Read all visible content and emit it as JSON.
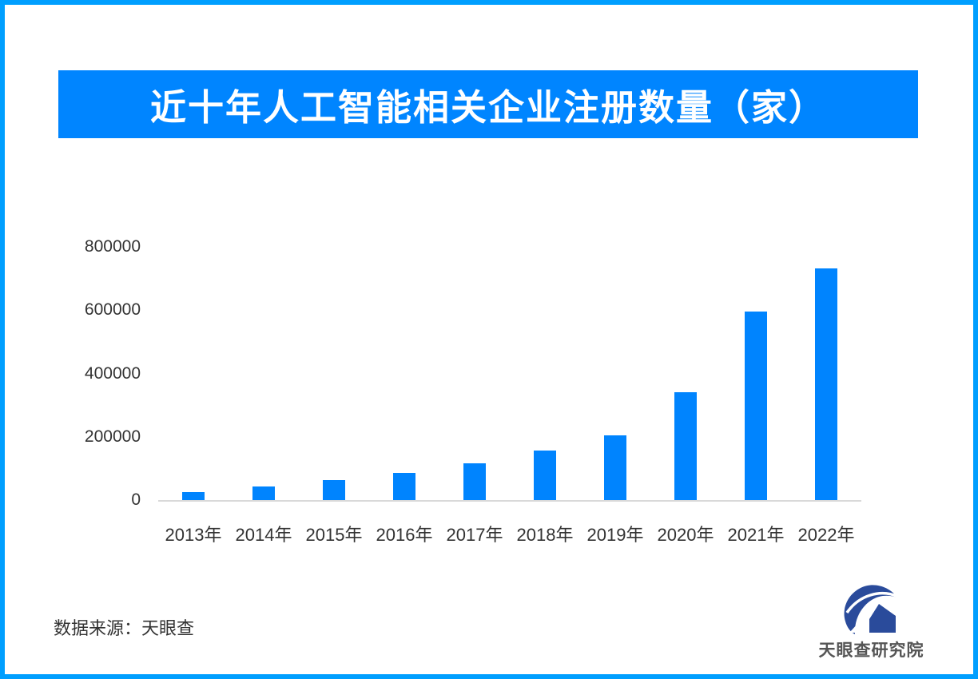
{
  "page": {
    "background": "#ffffff",
    "border_color": "#009fff"
  },
  "title": {
    "text": "近十年人工智能相关企业注册数量（家）",
    "bg_color": "#0085ff",
    "text_color": "#ffffff"
  },
  "chart_data": {
    "type": "bar",
    "title": "近十年人工智能相关企业注册数量（家）",
    "categories": [
      "2013年",
      "2014年",
      "2015年",
      "2016年",
      "2017年",
      "2018年",
      "2019年",
      "2020年",
      "2021年",
      "2022年"
    ],
    "values": [
      24000,
      43000,
      62000,
      86000,
      117000,
      156000,
      205000,
      341000,
      596000,
      733000
    ],
    "xlabel": "",
    "ylabel": "",
    "ylim": [
      0,
      800000
    ],
    "yticks": [
      0,
      200000,
      400000,
      600000,
      800000
    ],
    "bar_color": "#0084fe",
    "axis_line_color": "#d9d9d9",
    "label_color": "#333333",
    "grid": false,
    "legend_position": "none"
  },
  "footer": {
    "source_label": "数据来源：天眼查"
  },
  "logo": {
    "text": "天眼查研究院",
    "mark_color": "#2a4b9b",
    "text_color": "#555555"
  }
}
